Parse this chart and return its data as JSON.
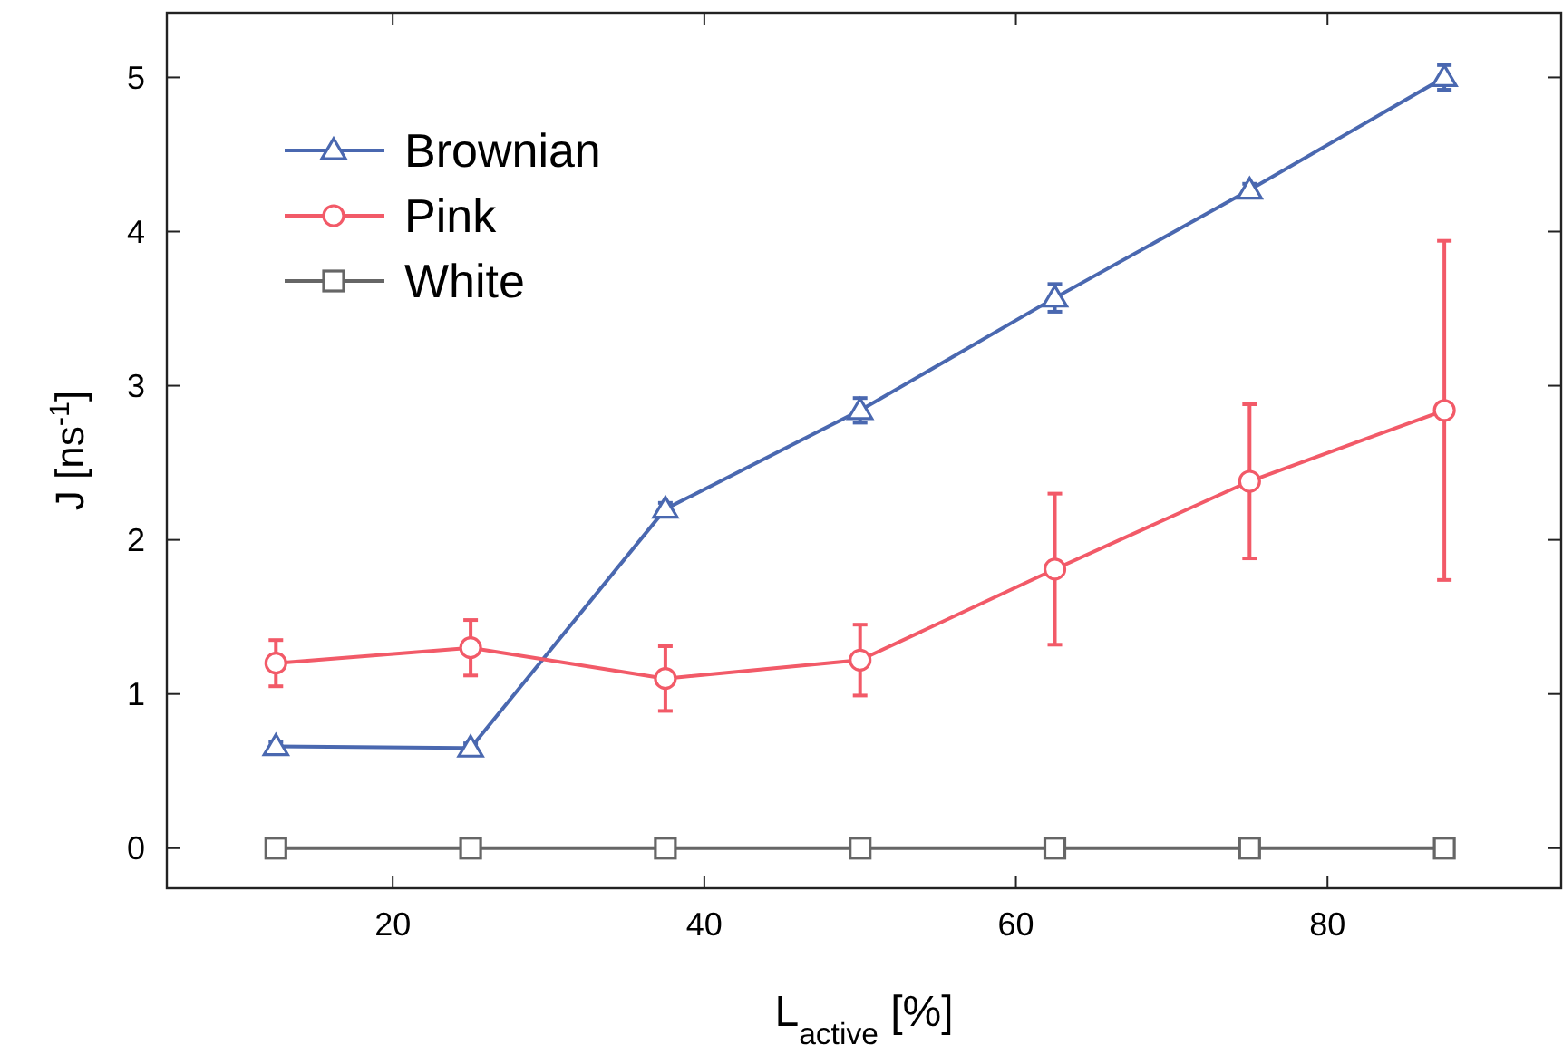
{
  "chart_data": {
    "type": "line",
    "xlabel": "L$_{active}$ [%]",
    "ylabel": "J [ns$^{-1}$]",
    "x": [
      12.5,
      25,
      37.5,
      50,
      62.5,
      75,
      87.5
    ],
    "xlim": [
      5.5,
      95
    ],
    "xticks": [
      20,
      40,
      60,
      80
    ],
    "ylim": [
      -0.26,
      5.42
    ],
    "yticks": [
      0,
      1,
      2,
      3,
      4,
      5
    ],
    "legend": "top left",
    "grid": false,
    "line_style": "solid",
    "series": [
      {
        "name": "Brownian",
        "color": "#4a68b0",
        "marker": "triangle",
        "values": [
          0.66,
          0.65,
          2.2,
          2.84,
          3.57,
          4.27,
          5.0
        ],
        "errors": [
          0.03,
          0.03,
          0.04,
          0.08,
          0.09,
          0.04,
          0.08
        ]
      },
      {
        "name": "Pink",
        "color": "#f25a68",
        "marker": "circle",
        "values": [
          1.2,
          1.3,
          1.1,
          1.22,
          1.81,
          2.38,
          2.84
        ],
        "errors": [
          0.15,
          0.18,
          0.21,
          0.23,
          0.49,
          0.5,
          1.1
        ]
      },
      {
        "name": "White",
        "color": "#666666",
        "marker": "square",
        "values": [
          0,
          0,
          0,
          0,
          0,
          0,
          0
        ],
        "errors": [
          null,
          null,
          null,
          null,
          null,
          null,
          null
        ]
      }
    ]
  }
}
